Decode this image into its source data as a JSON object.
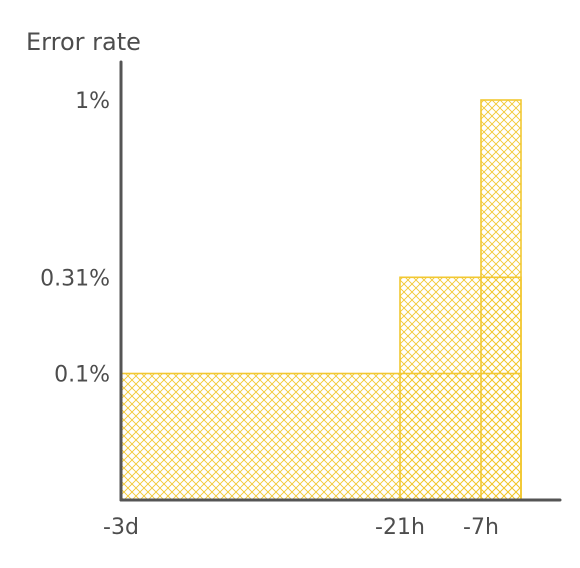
{
  "chart_data": {
    "type": "bar",
    "ylabel": "Error rate",
    "xlabel": "",
    "y_scale": "sqrt",
    "ylim": [
      0,
      1
    ],
    "x_ticks": [
      {
        "label": "-3d",
        "value": -72
      },
      {
        "label": "-21h",
        "value": -21
      },
      {
        "label": "-7h",
        "value": -7
      }
    ],
    "y_ticks": [
      {
        "label": "0.1%",
        "value": 0.1
      },
      {
        "label": "0.31%",
        "value": 0.31
      },
      {
        "label": "1%",
        "value": 1
      }
    ],
    "bars": [
      {
        "x_start": -72,
        "x_end": 0,
        "value": 0.1
      },
      {
        "x_start": -21,
        "x_end": 0,
        "value": 0.31
      },
      {
        "x_start": -7,
        "x_end": 0,
        "value": 1
      }
    ],
    "colors": {
      "bar": "#f2c832",
      "axis": "#555555",
      "text": "#4d4d4d"
    },
    "grid": false
  }
}
